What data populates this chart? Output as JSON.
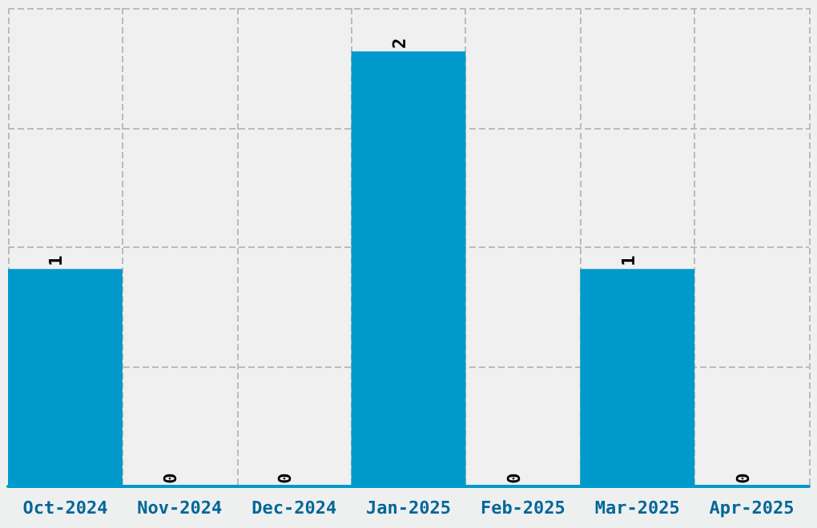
{
  "chart_data": {
    "type": "bar",
    "categories": [
      "Oct-2024",
      "Nov-2024",
      "Dec-2024",
      "Jan-2025",
      "Feb-2025",
      "Mar-2025",
      "Apr-2025"
    ],
    "values": [
      1,
      0,
      0,
      2,
      0,
      1,
      0
    ],
    "color": "#0099cc",
    "ylim": [
      0,
      2.2
    ],
    "yticks": [
      {
        "value": 0,
        "label": null
      },
      {
        "value": 0.55,
        "label": null
      },
      {
        "value": 1.1,
        "label": null
      },
      {
        "value": 1.65,
        "label": null
      },
      {
        "value": 2.2,
        "label": null
      }
    ],
    "grid": true,
    "tick_labels": "x",
    "data_labels": true
  }
}
